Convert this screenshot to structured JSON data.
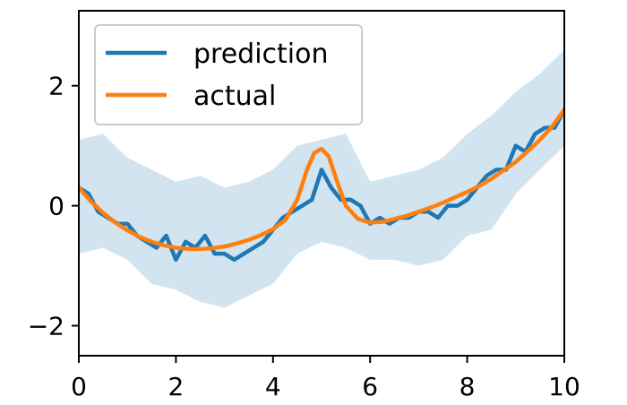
{
  "chart_data": {
    "type": "line",
    "title": "",
    "xlabel": "",
    "ylabel": "",
    "xlim": [
      0,
      10
    ],
    "ylim": [
      -2.5,
      3.25
    ],
    "x_ticks": [
      0,
      2,
      4,
      6,
      8,
      10
    ],
    "x_tick_labels": [
      "0",
      "2",
      "4",
      "6",
      "8",
      "10"
    ],
    "y_ticks": [
      -2,
      0,
      2
    ],
    "y_tick_labels": [
      "−2",
      "0",
      "2"
    ],
    "grid": false,
    "legend_placement": "upper-left",
    "band": {
      "x": [
        0,
        0.5,
        1,
        1.5,
        2,
        2.5,
        3,
        3.5,
        4,
        4.5,
        5,
        5.5,
        6,
        6.5,
        7,
        7.5,
        8,
        8.5,
        9,
        9.5,
        10
      ],
      "lower": [
        -0.8,
        -0.7,
        -0.9,
        -1.3,
        -1.4,
        -1.6,
        -1.7,
        -1.5,
        -1.3,
        -0.8,
        -0.6,
        -0.7,
        -0.9,
        -0.9,
        -1.0,
        -0.9,
        -0.5,
        -0.4,
        0.2,
        0.6,
        1.0
      ],
      "upper": [
        1.1,
        1.2,
        0.8,
        0.6,
        0.4,
        0.5,
        0.3,
        0.4,
        0.6,
        1.0,
        1.1,
        1.2,
        0.4,
        0.5,
        0.6,
        0.8,
        1.2,
        1.5,
        1.9,
        2.2,
        2.6
      ],
      "color": "#1f77b4",
      "opacity": 0.2
    },
    "series": [
      {
        "name": "prediction",
        "color": "#1f77b4",
        "x": [
          0,
          0.2,
          0.4,
          0.6,
          0.8,
          1.0,
          1.2,
          1.4,
          1.6,
          1.8,
          2.0,
          2.2,
          2.4,
          2.6,
          2.8,
          3.0,
          3.2,
          3.4,
          3.6,
          3.8,
          4.0,
          4.2,
          4.4,
          4.6,
          4.8,
          5.0,
          5.2,
          5.4,
          5.6,
          5.8,
          6.0,
          6.2,
          6.4,
          6.6,
          6.8,
          7.0,
          7.2,
          7.4,
          7.6,
          7.8,
          8.0,
          8.2,
          8.4,
          8.6,
          8.8,
          9.0,
          9.2,
          9.4,
          9.6,
          9.8,
          10.0
        ],
        "values": [
          0.3,
          0.2,
          -0.1,
          -0.2,
          -0.3,
          -0.3,
          -0.5,
          -0.6,
          -0.7,
          -0.5,
          -0.9,
          -0.6,
          -0.7,
          -0.5,
          -0.8,
          -0.8,
          -0.9,
          -0.8,
          -0.7,
          -0.6,
          -0.4,
          -0.2,
          -0.1,
          0.0,
          0.1,
          0.6,
          0.3,
          0.1,
          0.1,
          0.0,
          -0.3,
          -0.2,
          -0.3,
          -0.2,
          -0.2,
          -0.1,
          -0.1,
          -0.2,
          0.0,
          0.0,
          0.1,
          0.3,
          0.5,
          0.6,
          0.6,
          1.0,
          0.9,
          1.2,
          1.3,
          1.3,
          1.6
        ]
      },
      {
        "name": "actual",
        "color": "#ff7f0e",
        "x": [
          0,
          0.25,
          0.5,
          0.75,
          1.0,
          1.25,
          1.5,
          1.75,
          2.0,
          2.25,
          2.5,
          2.75,
          3.0,
          3.25,
          3.5,
          3.75,
          4.0,
          4.25,
          4.5,
          4.7,
          4.85,
          5.0,
          5.15,
          5.3,
          5.5,
          5.75,
          6.0,
          6.25,
          6.5,
          6.75,
          7.0,
          7.25,
          7.5,
          7.75,
          8.0,
          8.25,
          8.5,
          8.75,
          9.0,
          9.25,
          9.5,
          9.75,
          10.0
        ],
        "values": [
          0.3,
          0.07,
          -0.12,
          -0.28,
          -0.41,
          -0.52,
          -0.6,
          -0.66,
          -0.7,
          -0.72,
          -0.72,
          -0.71,
          -0.68,
          -0.63,
          -0.57,
          -0.49,
          -0.39,
          -0.24,
          0.1,
          0.6,
          0.88,
          0.95,
          0.82,
          0.45,
          0.0,
          -0.22,
          -0.28,
          -0.27,
          -0.22,
          -0.17,
          -0.1,
          -0.03,
          0.05,
          0.14,
          0.23,
          0.33,
          0.45,
          0.59,
          0.73,
          0.91,
          1.1,
          1.32,
          1.6
        ]
      }
    ]
  }
}
